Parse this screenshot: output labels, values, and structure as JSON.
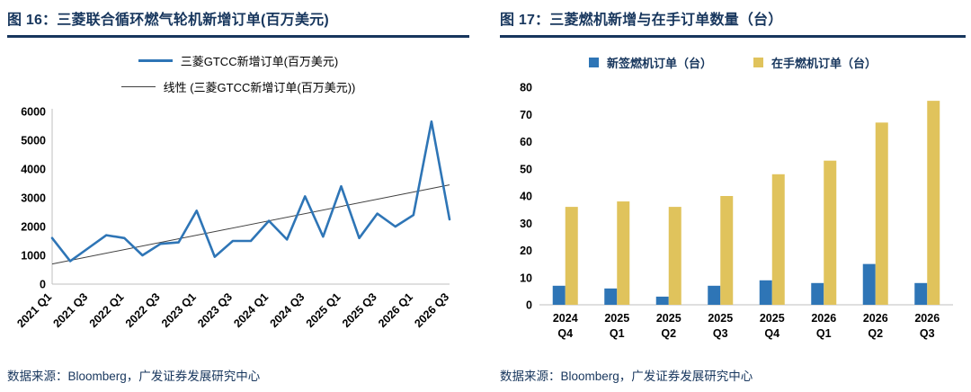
{
  "page": {
    "accent_navy": "#17365D",
    "series_blue": "#2E75B6",
    "series_gold": "#E0C35C"
  },
  "left_panel": {
    "title": "图 16：三菱联合循环燃气轮机新增订单(百万美元)",
    "footer": "数据来源：Bloomberg，广发证券发展研究中心"
  },
  "right_panel": {
    "title": "图 17：三菱燃机新增与在手订单数量（台）",
    "footer": "数据来源：Bloomberg，广发证券发展研究中心"
  },
  "chart_data": [
    {
      "type": "line",
      "title": "三菱联合循环燃气轮机新增订单(百万美元)",
      "legend": [
        "三菱GTCC新增订单(百万美元)",
        "线性 (三菱GTCC新增订单(百万美元))"
      ],
      "x": [
        "2021 Q1",
        "2021 Q2",
        "2021 Q3",
        "2021 Q4",
        "2022 Q1",
        "2022 Q2",
        "2022 Q3",
        "2022 Q4",
        "2023 Q1",
        "2023 Q2",
        "2023 Q3",
        "2023 Q4",
        "2024 Q1",
        "2024 Q2",
        "2024 Q3",
        "2024 Q4",
        "2025 Q1",
        "2025 Q2",
        "2025 Q3",
        "2025 Q4",
        "2026 Q1",
        "2026 Q2",
        "2026 Q3"
      ],
      "x_tick_every": 2,
      "series": [
        {
          "name": "三菱GTCC新增订单(百万美元)",
          "color": "#2E75B6",
          "values": [
            1600,
            800,
            1250,
            1700,
            1600,
            1000,
            1400,
            1450,
            2550,
            950,
            1500,
            1500,
            2200,
            1550,
            3050,
            1650,
            3400,
            1600,
            2450,
            2000,
            2400,
            5650,
            2250
          ]
        }
      ],
      "trendline": {
        "name": "线性 (三菱GTCC新增订单(百万美元))",
        "color": "#404040",
        "start_value": 700,
        "end_value": 3450
      },
      "ylim": [
        0,
        6000
      ],
      "yticks": [
        0,
        1000,
        2000,
        3000,
        4000,
        5000,
        6000
      ],
      "grid": false,
      "legend_position": "top"
    },
    {
      "type": "bar",
      "title": "三菱燃机新增与在手订单数量（台）",
      "categories": [
        "2024 Q4",
        "2025 Q1",
        "2025 Q2",
        "2025 Q3",
        "2025 Q4",
        "2026 Q1",
        "2026 Q2",
        "2026 Q3"
      ],
      "series": [
        {
          "name": "新签燃机订单（台）",
          "color": "#2E75B6",
          "values": [
            7,
            6,
            3,
            7,
            9,
            8,
            15,
            8
          ]
        },
        {
          "name": "在手燃机订单（台）",
          "color": "#E0C35C",
          "values": [
            36,
            38,
            36,
            40,
            48,
            53,
            67,
            75
          ]
        }
      ],
      "ylim": [
        0,
        80
      ],
      "yticks": [
        0,
        10,
        20,
        30,
        40,
        50,
        60,
        70,
        80
      ],
      "grid": false,
      "legend_position": "top"
    }
  ]
}
